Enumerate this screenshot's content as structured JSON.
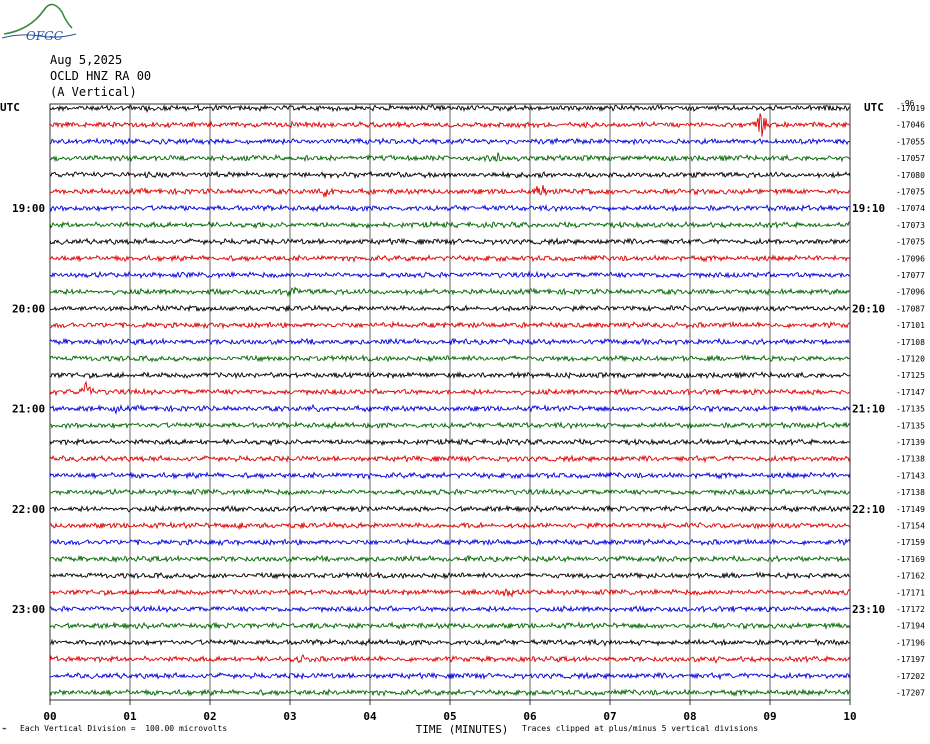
{
  "header": {
    "logo_text": "OFGC",
    "date": "Aug 5,2025",
    "station": "OCLD HNZ RA 00",
    "component": "(A Vertical)"
  },
  "chart_data": {
    "type": "seismogram",
    "left_tz": "UTC",
    "right_tz": "UTC",
    "xlabel": "TIME (MINUTES)",
    "x_ticks": [
      "00",
      "01",
      "02",
      "03",
      "04",
      "05",
      "06",
      "07",
      "08",
      "09",
      "10"
    ],
    "xlim": [
      0,
      10
    ],
    "minutes_per_trace": 10,
    "trace_colors": [
      "#000000",
      "#dd0000",
      "#0000dd",
      "#006600"
    ],
    "left_time_labels": [
      {
        "trace": 6,
        "label": "19:00"
      },
      {
        "trace": 12,
        "label": "20:00"
      },
      {
        "trace": 18,
        "label": "21:00"
      },
      {
        "trace": 24,
        "label": "22:00"
      },
      {
        "trace": 30,
        "label": "23:00"
      }
    ],
    "right_time_labels": [
      {
        "trace": 6,
        "label": "19:10"
      },
      {
        "trace": 12,
        "label": "20:10"
      },
      {
        "trace": 18,
        "label": "21:10"
      },
      {
        "trace": 24,
        "label": "22:10"
      },
      {
        "trace": 30,
        "label": "23:10"
      }
    ],
    "right_offset_header": "-96",
    "trace_offsets": [
      "-17019",
      "-17046",
      "-17055",
      "-17057",
      "-17080",
      "-17075",
      "-17074",
      "-17073",
      "-17075",
      "-17096",
      "-17077",
      "-17096",
      "-17087",
      "-17101",
      "-17108",
      "-17120",
      "-17125",
      "-17147",
      "-17135",
      "-17135",
      "-17139",
      "-17138",
      "-17143",
      "-17138",
      "-17149",
      "-17154",
      "-17159",
      "-17169",
      "-17162",
      "-17171",
      "-17172",
      "-17194",
      "-17196",
      "-17197",
      "-17202",
      "-17207"
    ],
    "events": [
      {
        "trace": 0,
        "minute": 1.2,
        "amp": 0.5
      },
      {
        "trace": 1,
        "minute": 8.9,
        "amp": 1.4
      },
      {
        "trace": 1,
        "minute": 1.5,
        "amp": 0.4
      },
      {
        "trace": 3,
        "minute": 5.6,
        "amp": 0.5
      },
      {
        "trace": 3,
        "minute": 0.9,
        "amp": 0.4
      },
      {
        "trace": 5,
        "minute": 3.45,
        "amp": 0.7
      },
      {
        "trace": 5,
        "minute": 6.15,
        "amp": 0.8
      },
      {
        "trace": 5,
        "minute": 6.9,
        "amp": 0.4
      },
      {
        "trace": 11,
        "minute": 3.05,
        "amp": 0.6
      },
      {
        "trace": 17,
        "minute": 0.45,
        "amp": 0.9
      },
      {
        "trace": 18,
        "minute": 3.35,
        "amp": 0.5
      },
      {
        "trace": 18,
        "minute": 0.8,
        "amp": 0.4
      },
      {
        "trace": 25,
        "minute": 2.35,
        "amp": 0.7
      },
      {
        "trace": 29,
        "minute": 5.7,
        "amp": 0.8
      },
      {
        "trace": 33,
        "minute": 3.15,
        "amp": 0.5
      },
      {
        "trace": 33,
        "minute": 8.35,
        "amp": 0.4
      }
    ]
  },
  "footer": {
    "scale_note": "Each Vertical Division =  100.00 microvolts",
    "clip_note": "Traces clipped at plus/minus 5 vertical divisions"
  }
}
